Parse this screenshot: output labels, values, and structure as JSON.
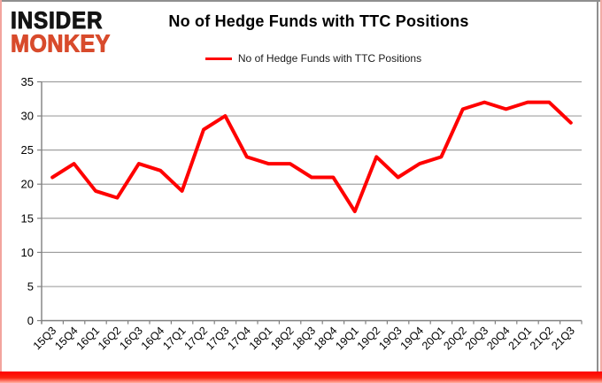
{
  "branding": {
    "line1": "INSIDER",
    "line2": "MONKEY",
    "line1_color": "#141414",
    "line2_color": "#d84b2c"
  },
  "header": {
    "title": "No of Hedge Funds with TTC Positions"
  },
  "legend": {
    "label": "No of Hedge Funds with TTC Positions",
    "swatch_color": "#ff0000"
  },
  "chart_data": {
    "type": "line",
    "title": "No of Hedge Funds with TTC Positions",
    "categories": [
      "15Q3",
      "15Q4",
      "16Q1",
      "16Q2",
      "16Q3",
      "16Q4",
      "17Q1",
      "17Q2",
      "17Q3",
      "17Q4",
      "18Q1",
      "18Q2",
      "18Q3",
      "18Q4",
      "19Q1",
      "19Q2",
      "19Q3",
      "19Q4",
      "20Q1",
      "20Q2",
      "20Q3",
      "20Q4",
      "21Q1",
      "21Q2",
      "21Q3"
    ],
    "series": [
      {
        "name": "No of Hedge Funds with TTC Positions",
        "color": "#ff0000",
        "values": [
          21,
          23,
          19,
          18,
          23,
          22,
          19,
          28,
          30,
          24,
          23,
          23,
          21,
          21,
          16,
          24,
          21,
          23,
          24,
          31,
          32,
          31,
          32,
          32,
          29
        ]
      }
    ],
    "xlabel": "",
    "ylabel": "",
    "ylim": [
      0,
      35
    ],
    "yticks": [
      0,
      5,
      10,
      15,
      20,
      25,
      30,
      35
    ],
    "grid": "horizontal",
    "legend_position": "top",
    "colors": {
      "gridline": "#a0a0a0",
      "axis": "#808080",
      "tick_label": "#000000"
    }
  }
}
